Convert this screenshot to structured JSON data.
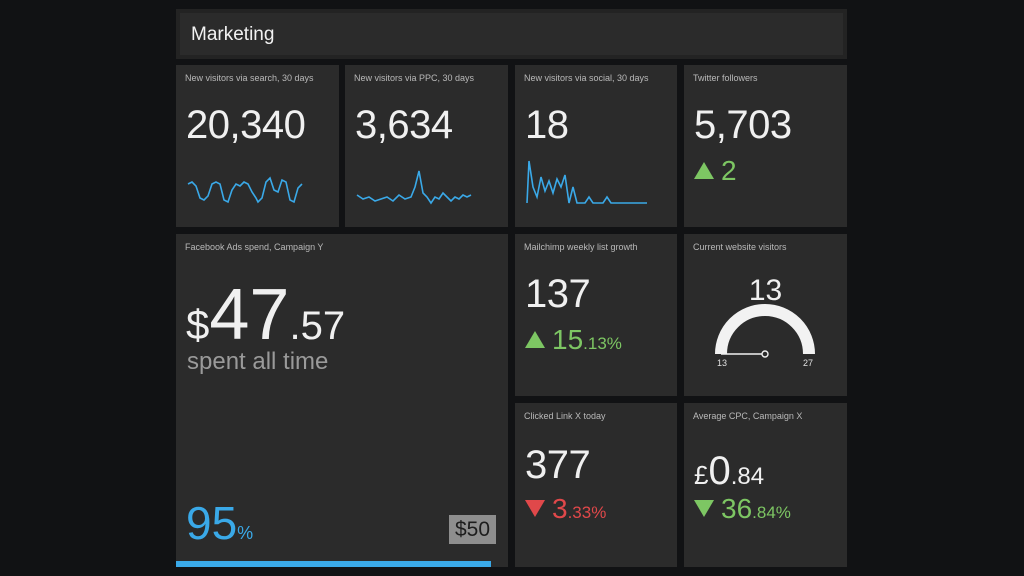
{
  "header": {
    "title": "Marketing"
  },
  "colors": {
    "accent_blue": "#3aa9e8",
    "up_green": "#7dc663",
    "down_red": "#e0484a"
  },
  "tiles": {
    "search": {
      "label": "New visitors via search, 30 days",
      "value": "20,340",
      "spark_end": "856"
    },
    "ppc": {
      "label": "New visitors via PPC, 30 days",
      "value": "3,634",
      "spark_end": "126"
    },
    "social": {
      "label": "New visitors via social, 30 days",
      "value": "18",
      "spark_end": "0"
    },
    "twitter": {
      "label": "Twitter followers",
      "value": "5,703",
      "change": "2"
    },
    "facebook": {
      "label": "Facebook Ads spend, Campaign Y",
      "currency": "$",
      "amount_int": "47",
      "amount_dec": ".57",
      "caption": "spent all time",
      "percent": "95",
      "percent_sign": "%",
      "progress": 0.95,
      "budget": "$50"
    },
    "mailchimp": {
      "label": "Mailchimp weekly list growth",
      "value": "137",
      "change_int": "15",
      "change_dec": ".13%"
    },
    "website": {
      "label": "Current website visitors",
      "value": "13",
      "min": "13",
      "max": "27"
    },
    "clicked": {
      "label": "Clicked Link X today",
      "value": "377",
      "change_int": "3",
      "change_dec": ".33%"
    },
    "cpc": {
      "label": "Average CPC, Campaign X",
      "currency": "£",
      "amount_int": "0",
      "amount_dec": ".84",
      "change_int": "36",
      "change_dec": ".84%"
    }
  }
}
